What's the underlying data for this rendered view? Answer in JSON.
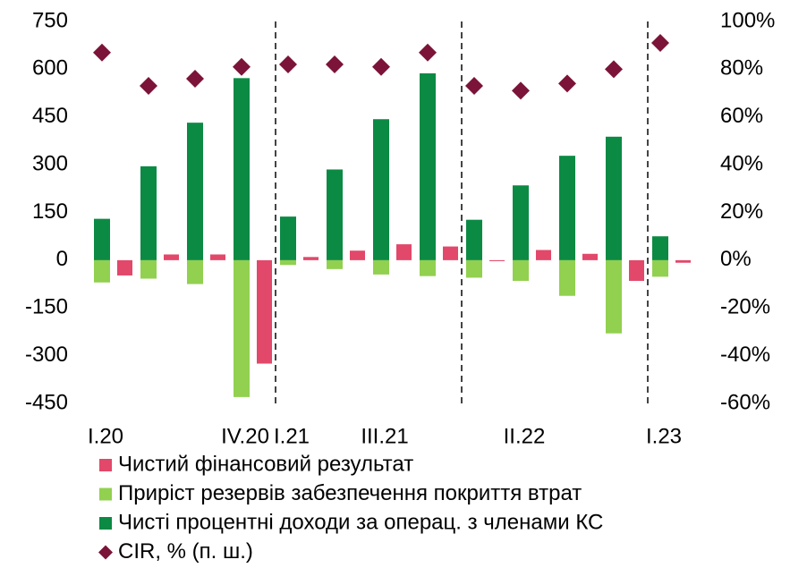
{
  "chart_data": {
    "type": "bar",
    "categories": [
      "I.20",
      null,
      null,
      "IV.20",
      "I.21",
      null,
      "III.21",
      null,
      null,
      "II.22",
      null,
      null,
      "I.23"
    ],
    "series": [
      {
        "name": "Чистий фінансовий результат",
        "color": "#e2486a",
        "values": [
          -48,
          18,
          18,
          -325,
          10,
          30,
          50,
          43,
          -3,
          32,
          20,
          -65,
          -8
        ]
      },
      {
        "name": "Приріст резервів забезпечення покриття втрат",
        "color": "#92d050",
        "values": [
          -70,
          -58,
          -75,
          -430,
          -15,
          -28,
          -45,
          -50,
          -55,
          -65,
          -112,
          -230,
          -52
        ]
      },
      {
        "name": "Чисті процентні доходи за операц. з членами КС",
        "color": "#0b8a44",
        "values": [
          130,
          295,
          432,
          572,
          137,
          285,
          443,
          587,
          127,
          235,
          328,
          388,
          75
        ]
      },
      {
        "name": "CIR, % (п. ш.)",
        "color": "#7b1438",
        "axis": "y2",
        "values": [
          87,
          73,
          76,
          81,
          82,
          82,
          81,
          87,
          73,
          71,
          74,
          80,
          91
        ]
      }
    ],
    "ylim": [
      -450,
      750
    ],
    "yticks": [
      -450,
      -300,
      -150,
      0,
      150,
      300,
      450,
      600,
      750
    ],
    "y2lim": [
      -60,
      100
    ],
    "y2ticks": [
      {
        "value": -60,
        "label": "-60%"
      },
      {
        "value": -40,
        "label": "-40%"
      },
      {
        "value": -20,
        "label": "-20%"
      },
      {
        "value": 0,
        "label": "0%"
      },
      {
        "value": 20,
        "label": "20%"
      },
      {
        "value": 40,
        "label": "40%"
      },
      {
        "value": 60,
        "label": "60%"
      },
      {
        "value": 80,
        "label": "80%"
      },
      {
        "value": 100,
        "label": "100%"
      }
    ]
  }
}
